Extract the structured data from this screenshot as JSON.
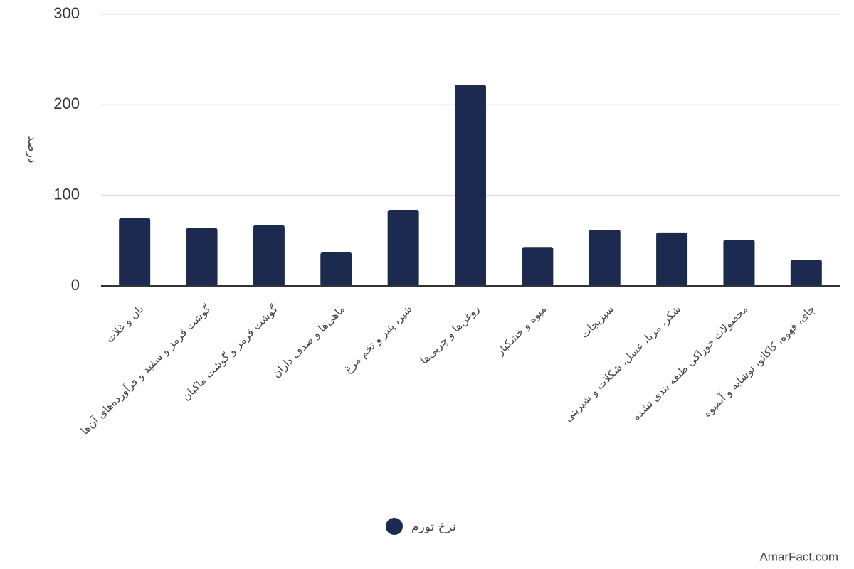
{
  "chart_data": {
    "type": "bar",
    "y_label": "درصد",
    "categories": [
      "نان و غلات",
      "گوشت قرمز و سفید و فرآورده‌های آن‌ها",
      "گوشت قرمز و گوشت ماکیان",
      "ماهی‌ها و صدف داران",
      "شیر، پنیر و تخم مرغ",
      "روغن‌ها و چربی‌ها",
      "میوه و خشکبار",
      "سبزیجات",
      "شکر، مربا، عسل، شکلات و شیرینی",
      "محصولات خوراکی طبقه بندی نشده",
      "چای، قهوه، کاکائو، نوشابه و آبمیوه"
    ],
    "series": [
      {
        "name": "نرخ تورم",
        "color": "#1b2a4e",
        "values": [
          75,
          64,
          67,
          37,
          84,
          222,
          43,
          62,
          59,
          51,
          29
        ]
      }
    ],
    "ylim": [
      0,
      300
    ],
    "yticks": [
      0,
      100,
      200,
      300
    ],
    "grid": true,
    "legend": "bottom",
    "watermark": "AmarFact.com"
  }
}
